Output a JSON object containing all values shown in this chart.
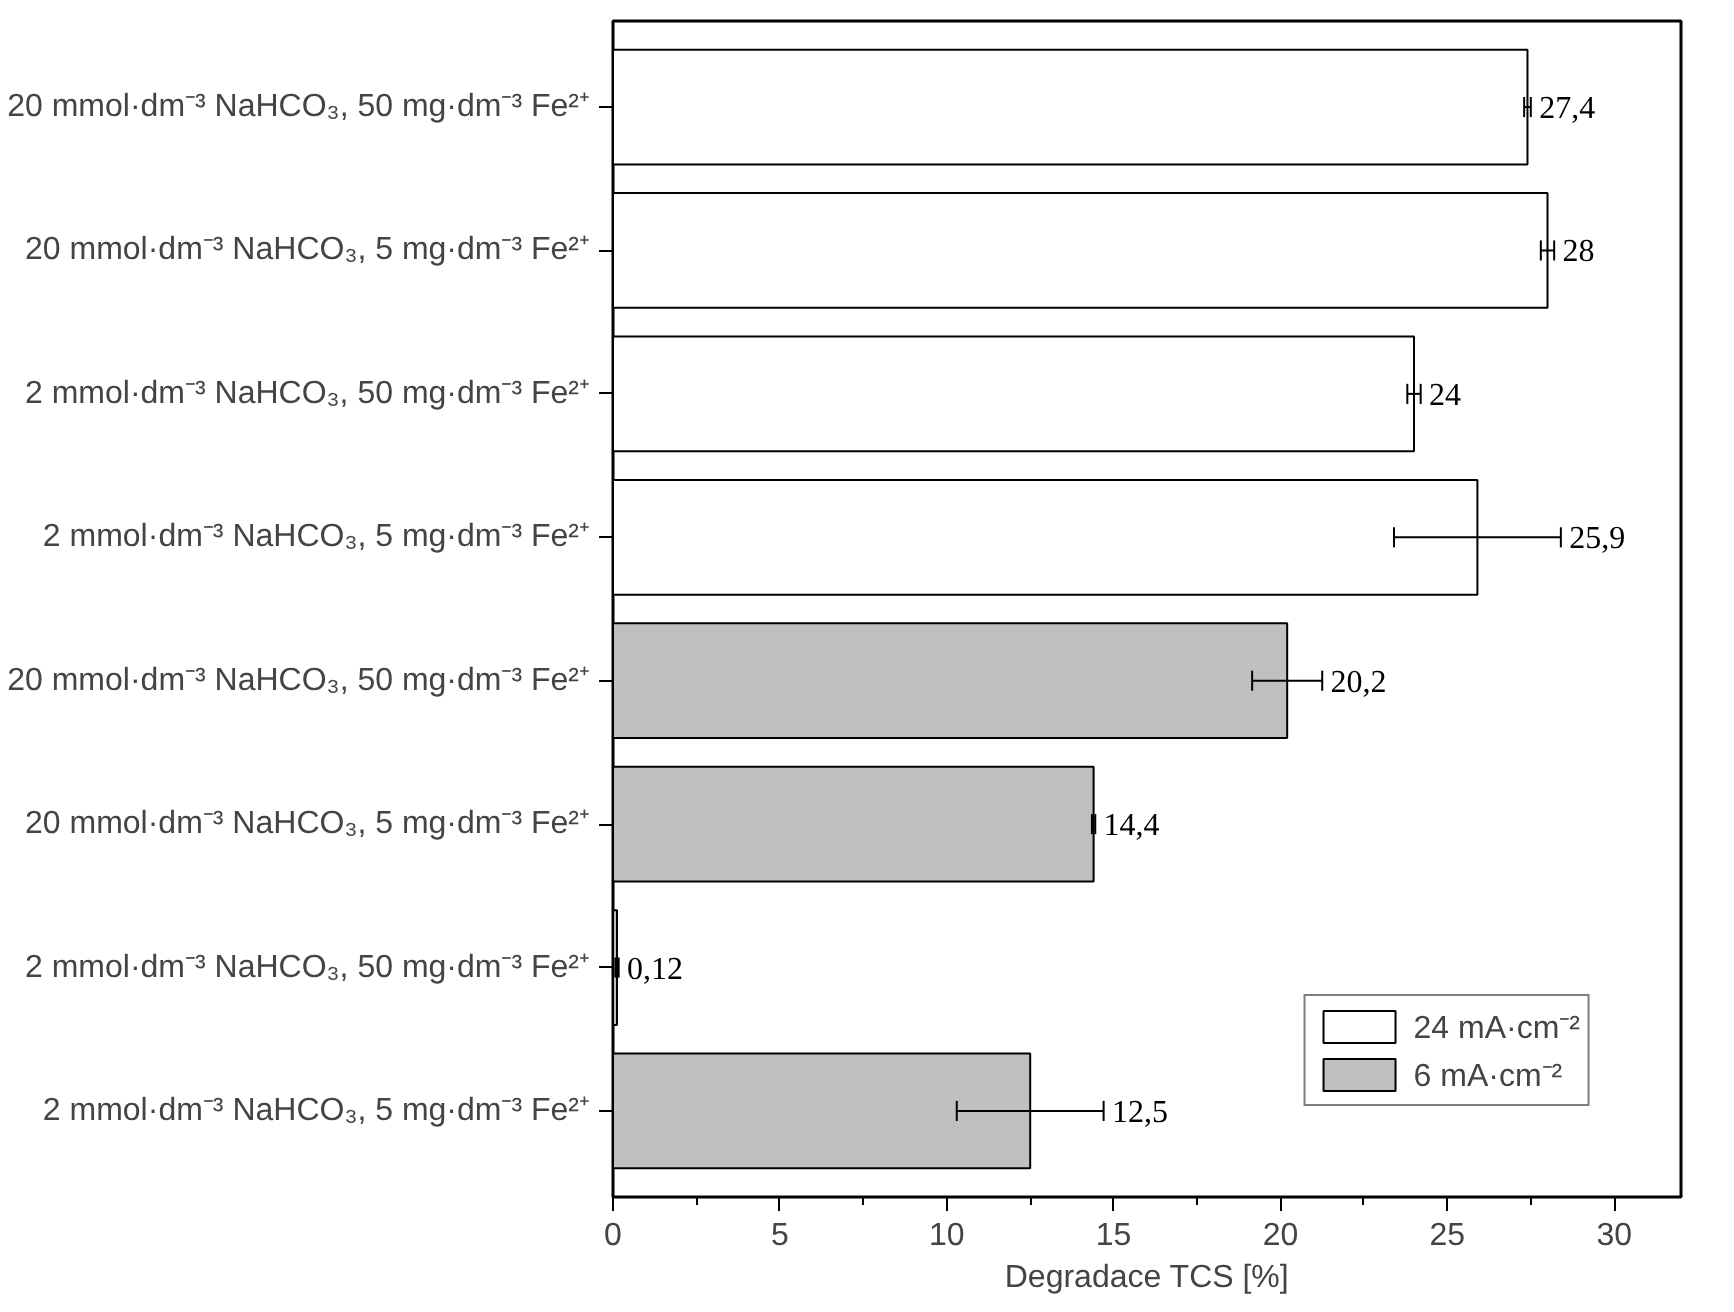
{
  "chart_data": {
    "type": "bar",
    "orientation": "horizontal",
    "xlabel": "Degradace TCS [%]",
    "categories": [
      "20 mmol·dm⁻³ NaHCO₃, 50 mg·dm⁻³ Fe²⁺",
      "20 mmol·dm⁻³ NaHCO₃, 5 mg·dm⁻³ Fe²⁺",
      "2 mmol·dm⁻³ NaHCO₃, 50 mg·dm⁻³ Fe²⁺",
      "2 mmol·dm⁻³ NaHCO₃, 5 mg·dm⁻³ Fe²⁺",
      "20 mmol·dm⁻³ NaHCO₃, 50 mg·dm⁻³ Fe²⁺",
      "20 mmol·dm⁻³ NaHCO₃, 5 mg·dm⁻³ Fe²⁺",
      "2 mmol·dm⁻³ NaHCO₃, 50 mg·dm⁻³ Fe²⁺",
      "2 mmol·dm⁻³ NaHCO₃, 5 mg·dm⁻³ Fe²⁺"
    ],
    "series": [
      {
        "name": "24 mA·cm⁻²",
        "color": "#ffffff",
        "values": [
          27.4,
          28,
          24,
          25.9,
          null,
          null,
          null,
          null
        ],
        "errors": [
          0.1,
          0.2,
          0.2,
          2.5,
          null,
          null,
          null,
          null
        ],
        "value_labels": [
          "27,4",
          "28",
          "24",
          "25,9",
          null,
          null,
          null,
          null
        ]
      },
      {
        "name": "6 mA·cm⁻²",
        "color": "#c0c0c0",
        "values": [
          null,
          null,
          null,
          null,
          20.2,
          14.4,
          0.12,
          12.5
        ],
        "errors": [
          null,
          null,
          null,
          null,
          1.05,
          0.05,
          0.05,
          2.2
        ],
        "value_labels": [
          null,
          null,
          null,
          null,
          "20,2",
          "14,4",
          "0,12",
          "12,5"
        ]
      }
    ],
    "xlim": [
      0,
      32
    ],
    "xticks": [
      0,
      5,
      10,
      15,
      20,
      25,
      30
    ],
    "grid": false,
    "legend": "bottom right"
  }
}
